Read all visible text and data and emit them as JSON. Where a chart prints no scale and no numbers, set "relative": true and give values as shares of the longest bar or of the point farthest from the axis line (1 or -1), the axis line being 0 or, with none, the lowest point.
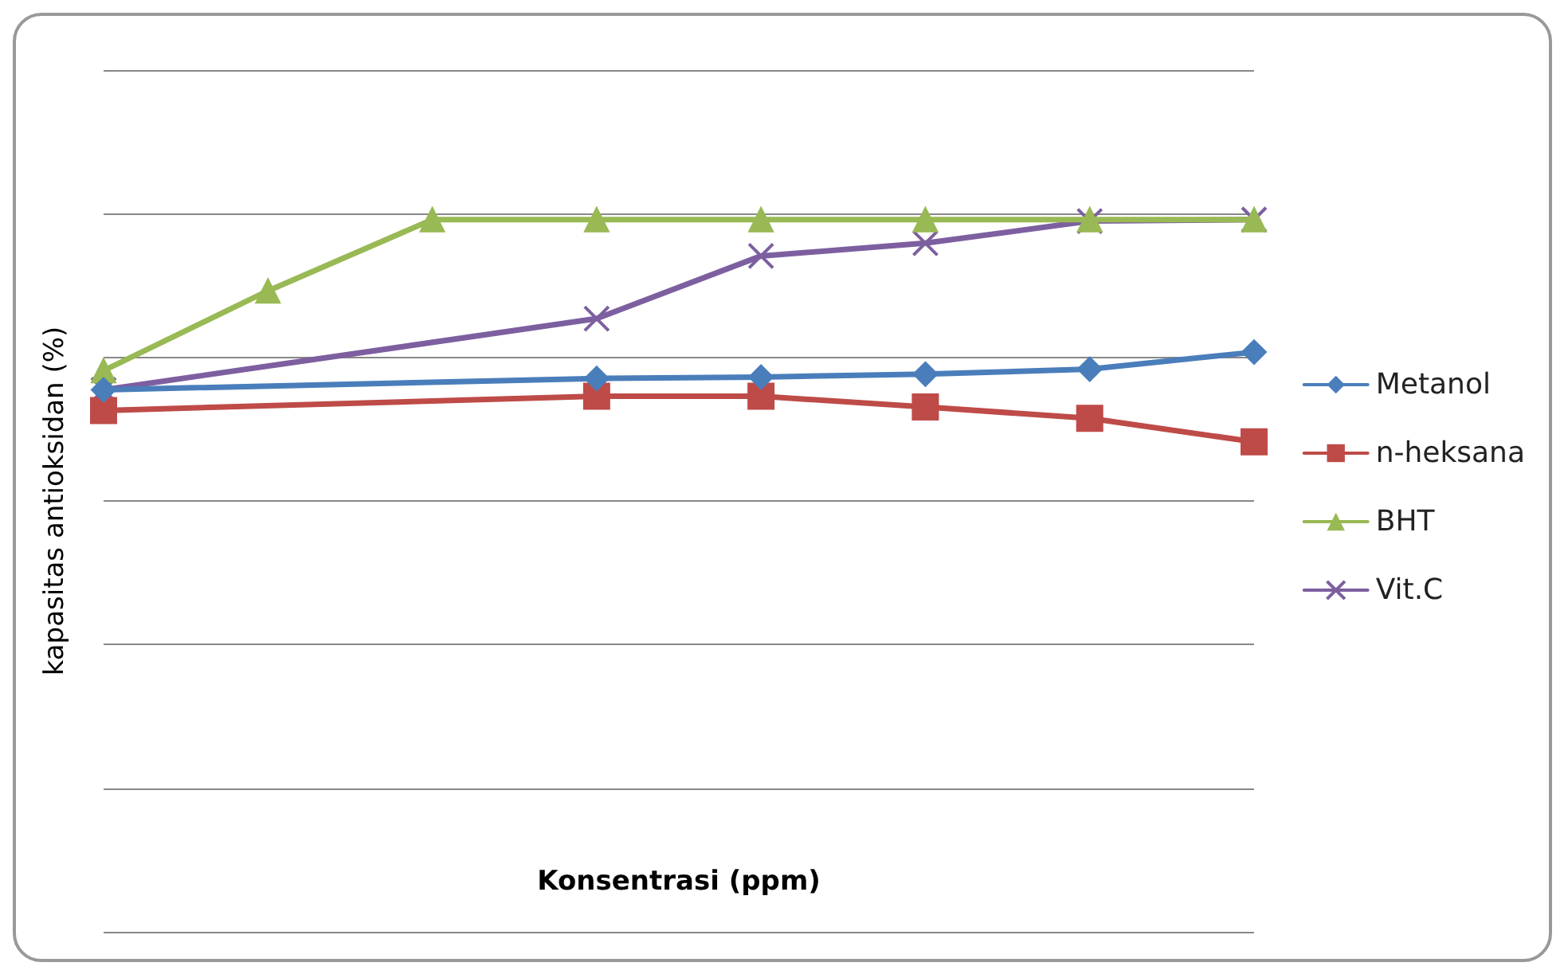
{
  "chart_data": {
    "type": "line",
    "relative": true,
    "xlabel": "Konsentrasi (ppm)",
    "ylabel": "kapasitas antioksidan (%)",
    "categories": [
      null,
      null,
      null,
      null,
      null,
      null,
      null,
      null
    ],
    "grid": "y",
    "legend": "right",
    "line_style": "solid",
    "series": [
      {
        "name": "Metanol",
        "color": "#4a7ebb",
        "marker": "diamond",
        "values": [
          0.761,
          null,
          null,
          0.777,
          0.779,
          0.783,
          0.79,
          0.814
        ]
      },
      {
        "name": "n-heksana",
        "color": "#be4b48",
        "marker": "square",
        "values": [
          0.732,
          null,
          null,
          0.752,
          0.752,
          0.737,
          0.721,
          0.688
        ]
      },
      {
        "name": "BHT",
        "color": "#98b954",
        "marker": "triangle",
        "values": [
          0.788,
          0.9,
          1.0,
          1.0,
          1.0,
          1.0,
          1.0,
          1.0
        ]
      },
      {
        "name": "Vit.C",
        "color": "#7d5fa0",
        "marker": "cross",
        "values": [
          0.761,
          null,
          null,
          0.861,
          0.949,
          0.967,
          0.998,
          1.0
        ]
      }
    ]
  }
}
